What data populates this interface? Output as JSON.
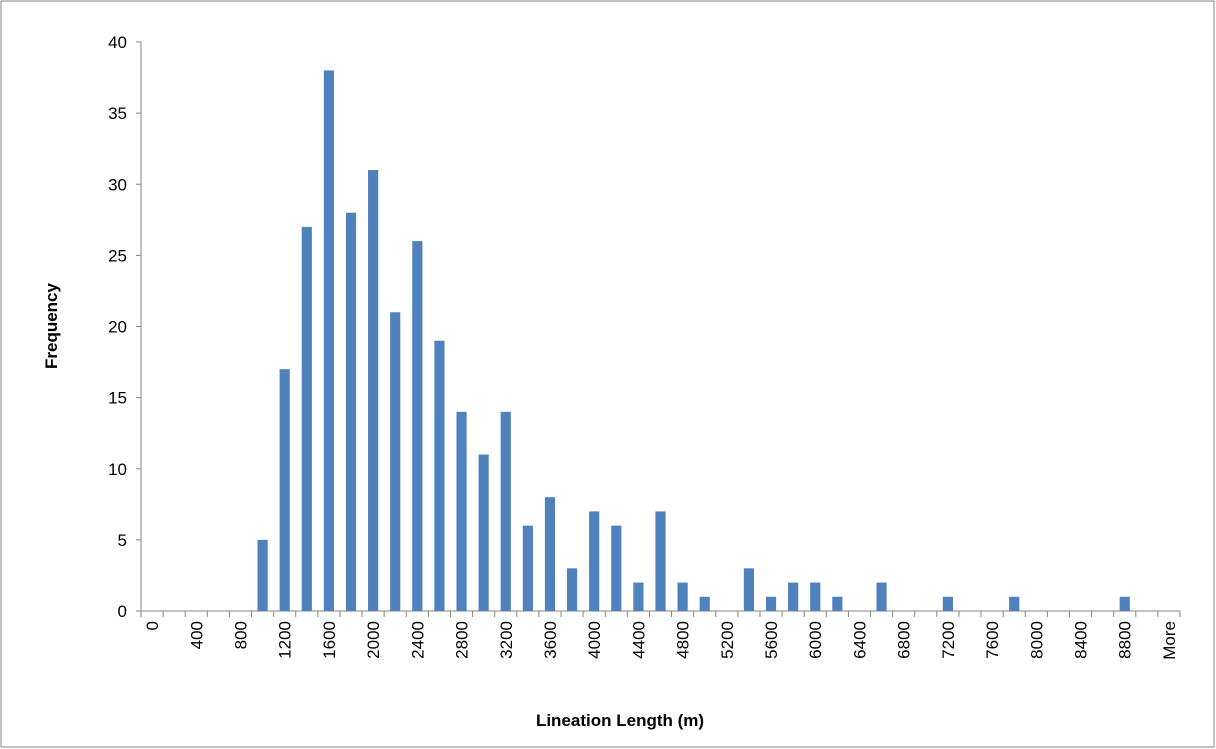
{
  "chart_data": {
    "type": "bar",
    "ylabel": "Frequency",
    "xlabel": "Lineation Length (m)",
    "categories": [
      "0",
      null,
      "400",
      null,
      "800",
      null,
      "1200",
      null,
      "1600",
      null,
      "2000",
      null,
      "2400",
      null,
      "2800",
      null,
      "3200",
      null,
      "3600",
      null,
      "4000",
      null,
      "4400",
      null,
      "4800",
      null,
      "5200",
      null,
      "5600",
      null,
      "6000",
      null,
      "6400",
      null,
      "6800",
      null,
      "7200",
      null,
      "7600",
      null,
      "8000",
      null,
      "8400",
      null,
      "8800",
      null,
      "More"
    ],
    "values": [
      0,
      0,
      0,
      0,
      0,
      5,
      17,
      27,
      38,
      28,
      31,
      21,
      26,
      19,
      14,
      11,
      14,
      6,
      8,
      3,
      7,
      6,
      2,
      7,
      2,
      1,
      0,
      3,
      1,
      2,
      2,
      1,
      0,
      2,
      0,
      0,
      1,
      0,
      0,
      1,
      0,
      0,
      0,
      0,
      1,
      0,
      0
    ],
    "color": "#4f81bd",
    "ylim": [
      0,
      40
    ],
    "yticks": [
      0,
      5,
      10,
      15,
      20,
      25,
      30,
      35,
      40
    ],
    "grid": false
  }
}
